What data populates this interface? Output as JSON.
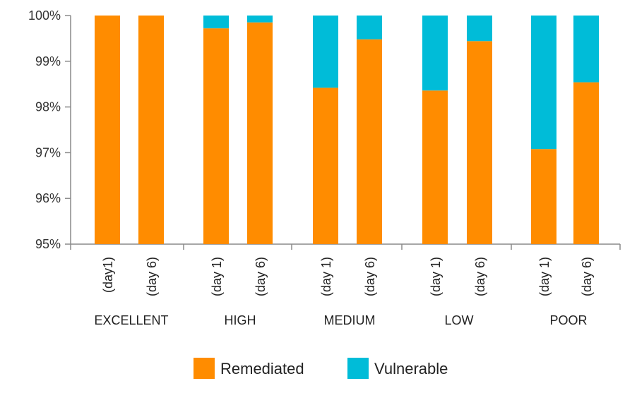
{
  "chart_data": {
    "type": "bar",
    "stacked": true,
    "categories": [
      "EXCELLENT",
      "HIGH",
      "MEDIUM",
      "LOW",
      "POOR"
    ],
    "bars": [
      {
        "group": "EXCELLENT",
        "label": "(day1)",
        "remediated": 100.0,
        "vulnerable": 0.0
      },
      {
        "group": "EXCELLENT",
        "label": "(day 6)",
        "remediated": 100.0,
        "vulnerable": 0.0
      },
      {
        "group": "HIGH",
        "label": "(day 1)",
        "remediated": 99.72,
        "vulnerable": 0.28
      },
      {
        "group": "HIGH",
        "label": "(day 6)",
        "remediated": 99.85,
        "vulnerable": 0.15
      },
      {
        "group": "MEDIUM",
        "label": "(day 1)",
        "remediated": 98.42,
        "vulnerable": 1.58
      },
      {
        "group": "MEDIUM",
        "label": "(day 6)",
        "remediated": 99.48,
        "vulnerable": 0.52
      },
      {
        "group": "LOW",
        "label": "(day 1)",
        "remediated": 98.36,
        "vulnerable": 1.64
      },
      {
        "group": "LOW",
        "label": "(day 6)",
        "remediated": 99.44,
        "vulnerable": 0.56
      },
      {
        "group": "POOR",
        "label": "(day 1)",
        "remediated": 97.08,
        "vulnerable": 2.92
      },
      {
        "group": "POOR",
        "label": "(day 6)",
        "remediated": 98.54,
        "vulnerable": 1.46
      }
    ],
    "series": [
      {
        "name": "Remediated",
        "color": "#ff8c00"
      },
      {
        "name": "Vulnerable",
        "color": "#00bcd8"
      }
    ],
    "yticks": [
      "95%",
      "96%",
      "97%",
      "98%",
      "99%",
      "100%"
    ],
    "ylim": [
      95,
      100
    ],
    "legend_position": "bottom",
    "grid": false
  }
}
